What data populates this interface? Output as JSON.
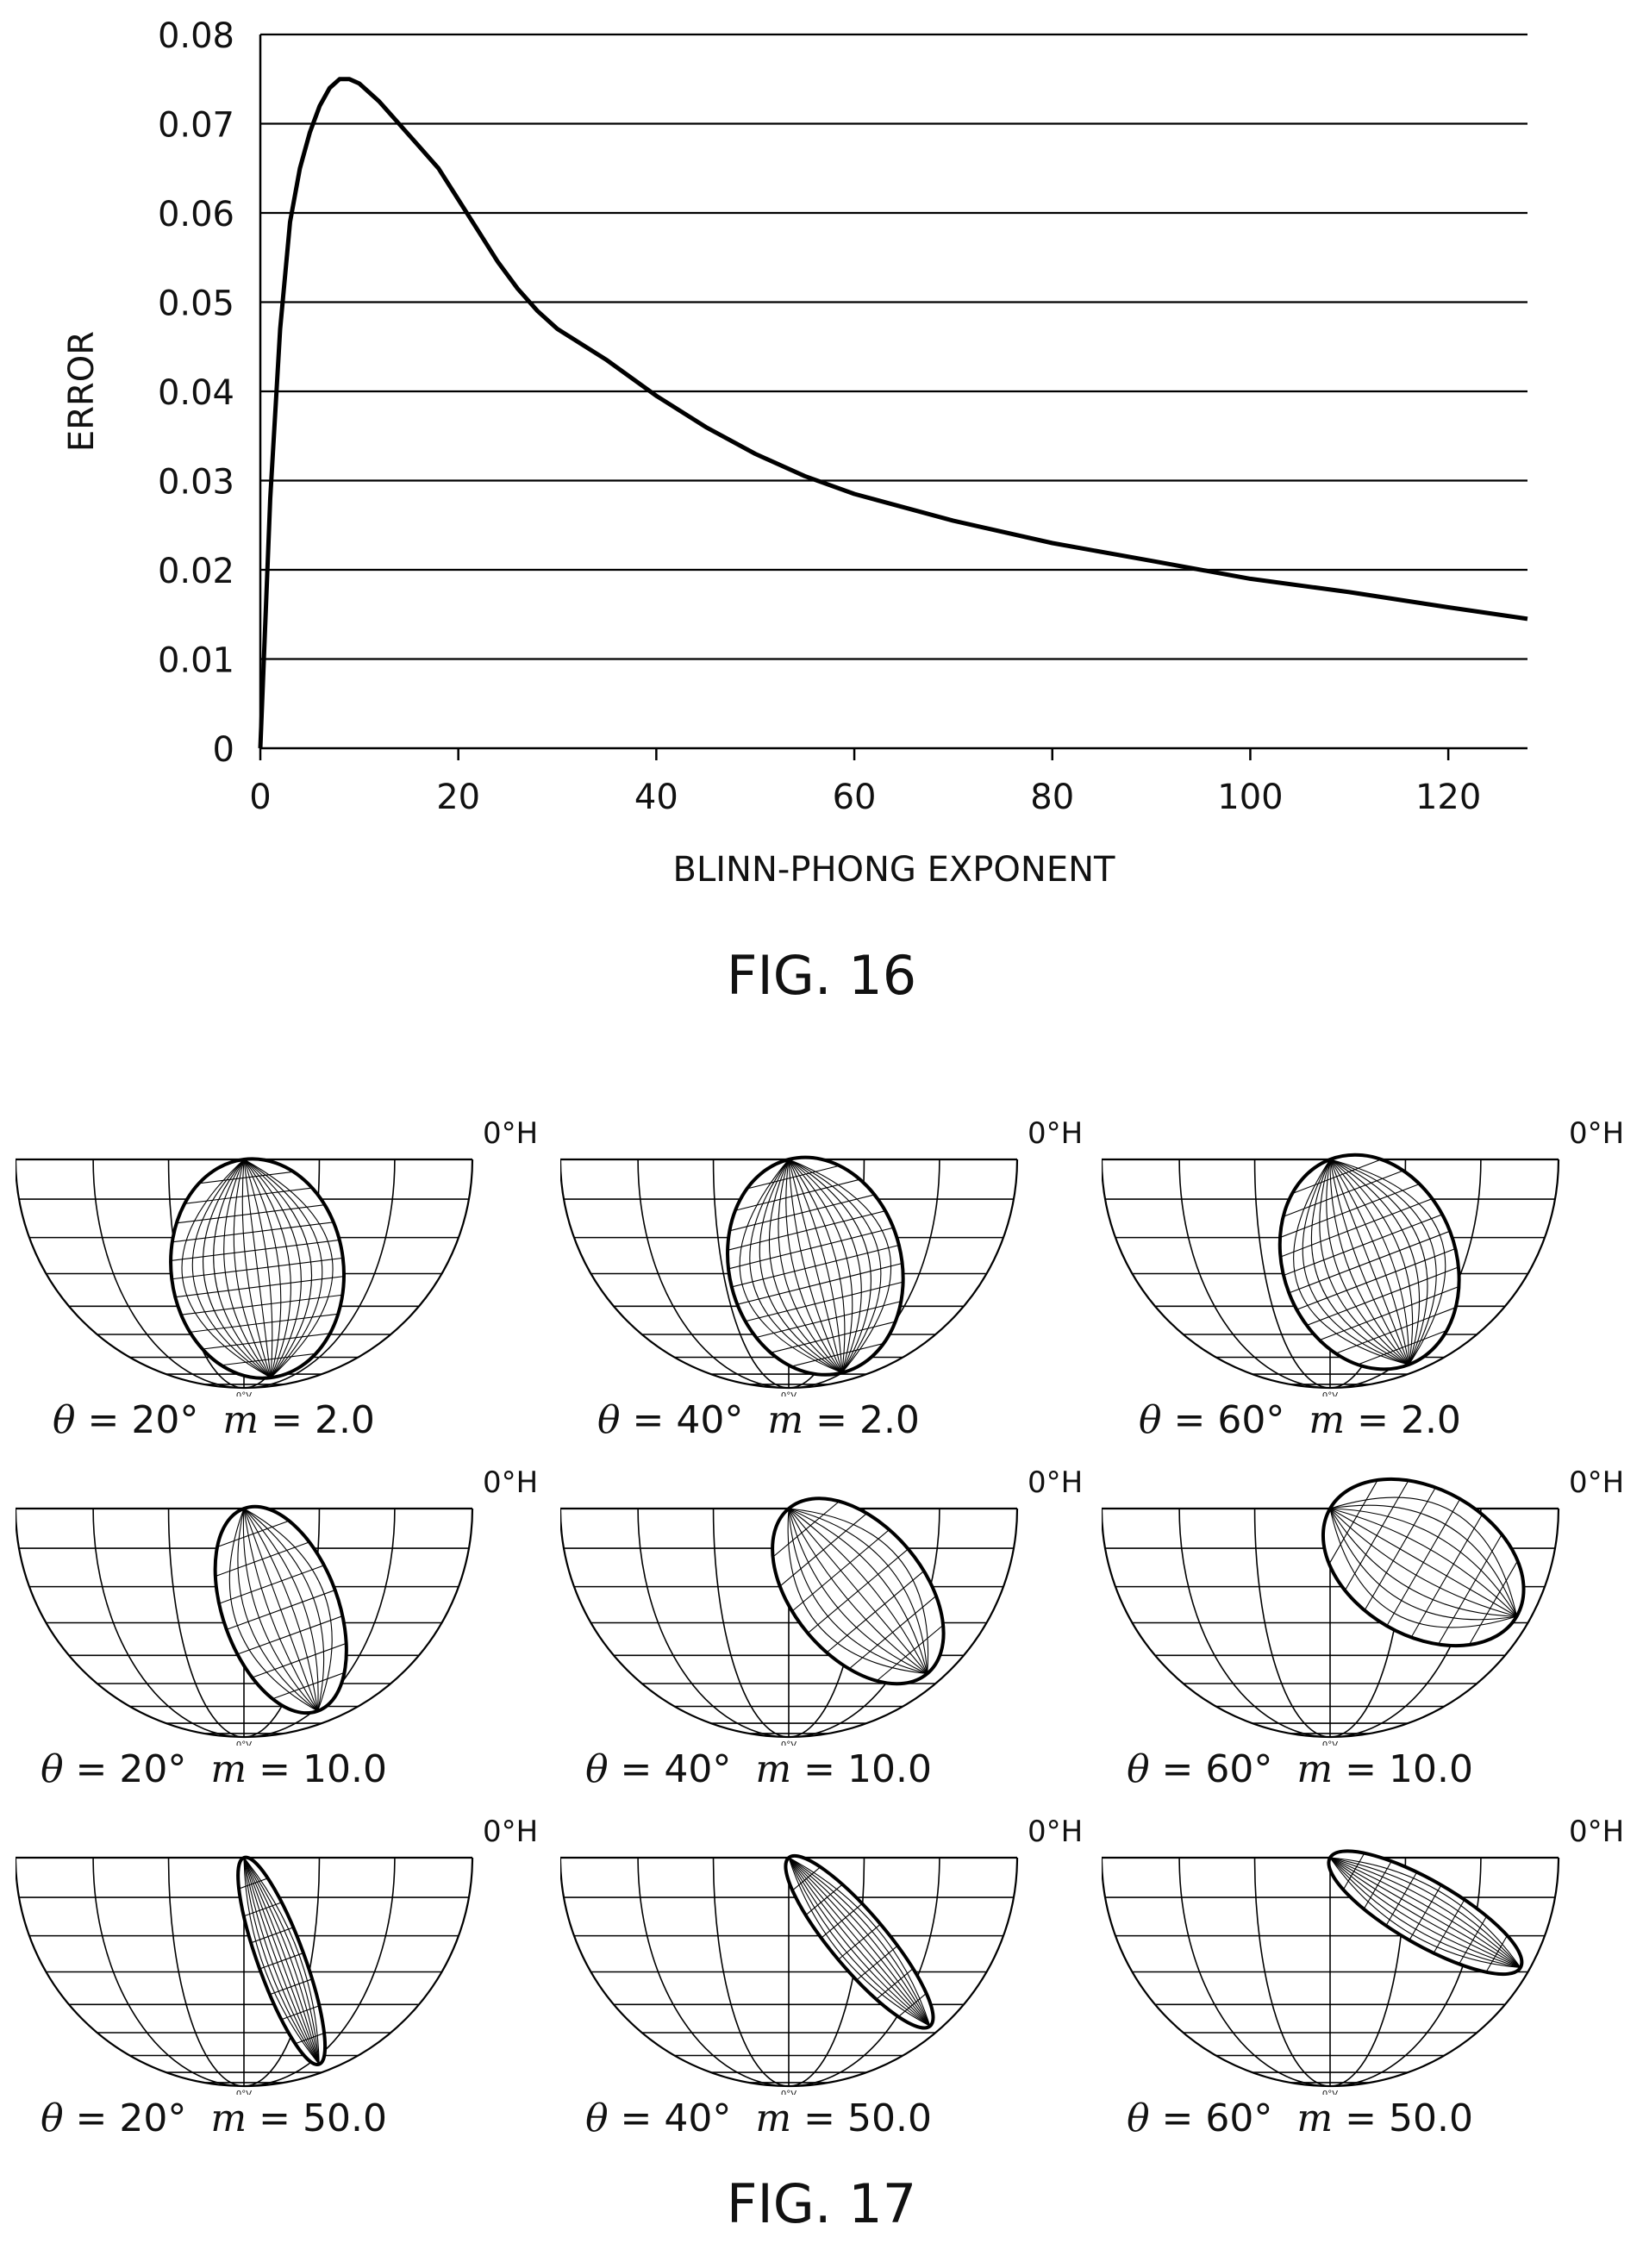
{
  "fig16": {
    "caption": "FIG. 16",
    "chart_data": {
      "type": "line",
      "xlabel": "BLINN-PHONG EXPONENT",
      "ylabel": "ERROR",
      "xlim": [
        0,
        128
      ],
      "ylim": [
        0,
        0.08
      ],
      "xticks": [
        "0",
        "20",
        "40",
        "60",
        "80",
        "100",
        "120"
      ],
      "yticks": [
        "0",
        "0.01",
        "0.02",
        "0.03",
        "0.04",
        "0.05",
        "0.06",
        "0.07",
        "0.08"
      ],
      "grid": "horizontal",
      "series": [
        {
          "x": [
            0,
            1,
            2,
            3,
            4,
            5,
            6,
            7,
            8,
            9,
            10,
            12,
            14,
            16,
            18,
            20,
            22,
            24,
            26,
            28,
            30,
            35,
            40,
            45,
            50,
            55,
            60,
            70,
            80,
            90,
            100,
            110,
            120,
            128
          ],
          "y": [
            0.0,
            0.028,
            0.047,
            0.059,
            0.065,
            0.069,
            0.072,
            0.074,
            0.075,
            0.075,
            0.0745,
            0.0725,
            0.07,
            0.0675,
            0.065,
            0.0615,
            0.058,
            0.0545,
            0.0515,
            0.049,
            0.047,
            0.0435,
            0.0395,
            0.036,
            0.033,
            0.0305,
            0.0285,
            0.0255,
            0.023,
            0.021,
            0.019,
            0.0175,
            0.0158,
            0.0145
          ]
        }
      ]
    }
  },
  "fig17": {
    "caption": "FIG. 17",
    "h_label": "0°H",
    "panels": [
      {
        "theta": "20°",
        "m": "2.0"
      },
      {
        "theta": "40°",
        "m": "2.0"
      },
      {
        "theta": "60°",
        "m": "2.0"
      },
      {
        "theta": "20°",
        "m": "10.0"
      },
      {
        "theta": "40°",
        "m": "10.0"
      },
      {
        "theta": "60°",
        "m": "10.0"
      },
      {
        "theta": "20°",
        "m": "50.0"
      },
      {
        "theta": "40°",
        "m": "50.0"
      },
      {
        "theta": "60°",
        "m": "50.0"
      }
    ]
  }
}
